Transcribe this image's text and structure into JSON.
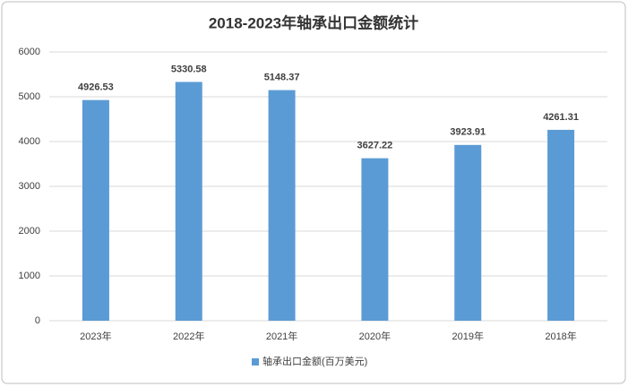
{
  "chart_data": {
    "type": "bar",
    "title": "2018-2023年轴承出口金额统计",
    "categories": [
      "2023年",
      "2022年",
      "2021年",
      "2020年",
      "2019年",
      "2018年"
    ],
    "series": [
      {
        "name": "轴承出口金额(百万美元)",
        "color": "#5b9bd5",
        "values": [
          4926.53,
          5330.58,
          5148.37,
          3627.22,
          3923.91,
          4261.31
        ]
      }
    ],
    "ylim": [
      0,
      6000
    ],
    "yticks": [
      0,
      1000,
      2000,
      3000,
      4000,
      5000,
      6000
    ],
    "grid": true,
    "legend": "bottom"
  }
}
